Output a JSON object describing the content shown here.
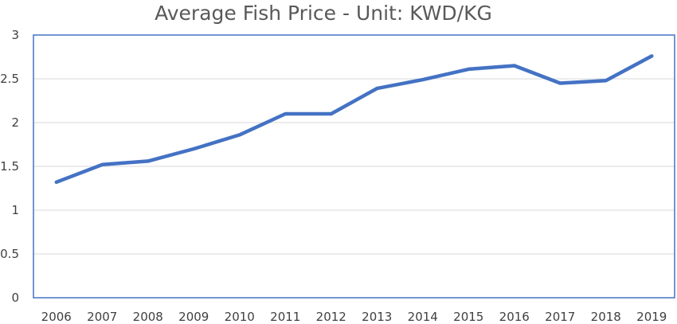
{
  "chart_data": {
    "type": "line",
    "title": "Average Fish Price - Unit: KWD/KG",
    "xlabel": "",
    "ylabel": "",
    "categories": [
      "2006",
      "2007",
      "2008",
      "2009",
      "2010",
      "2011",
      "2012",
      "2013",
      "2014",
      "2015",
      "2016",
      "2017",
      "2018",
      "2019"
    ],
    "series": [
      {
        "values": [
          1.32,
          1.52,
          1.56,
          1.7,
          1.86,
          2.1,
          2.1,
          2.39,
          2.49,
          2.61,
          2.65,
          2.45,
          2.48,
          2.76
        ]
      }
    ],
    "ylim": [
      0,
      3
    ],
    "yticks": [
      "0",
      "0.5",
      "1",
      "1.5",
      "2",
      "2.5",
      "3"
    ],
    "grid": true,
    "legend": "none",
    "colors": {
      "line": "#4472c4",
      "grid": "#d9d9d9",
      "border": "#4472c4"
    }
  }
}
